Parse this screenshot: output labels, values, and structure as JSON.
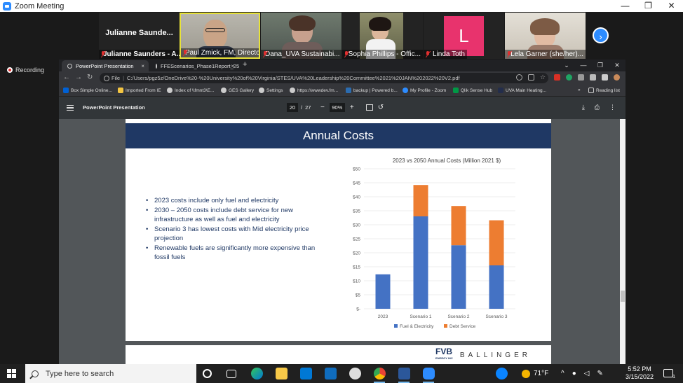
{
  "zoom": {
    "title": "Zoom Meeting",
    "window_controls": [
      "—",
      "❐",
      "✕"
    ],
    "recording_label": "Recording",
    "participants": [
      {
        "display": "Julianne  Saunde...",
        "label": "Julianne Saunders - A..."
      },
      {
        "label": "Paul Zmick, FM, Director ..."
      },
      {
        "label": "Dana_UVA Sustainabi..."
      },
      {
        "label": "Sophia Phillips - Offic..."
      },
      {
        "avatar_letter": "L",
        "avatar_color": "#e8336d",
        "label": "Linda Toth"
      },
      {
        "label": "Lela Garner (she/her)..."
      }
    ],
    "next_icon": "chevron-right-icon"
  },
  "browser": {
    "tabs": [
      {
        "label": "PowerPoint Presentation",
        "close": "×"
      },
      {
        "label": "FFEScenarios_Phase1Report_25",
        "close": "×"
      }
    ],
    "new_tab": "+",
    "window_controls": [
      "⌄",
      "—",
      "❐",
      "✕"
    ],
    "address": {
      "file_label": "File",
      "url": "C:/Users/pgz5z/OneDrive%20-%20University%20of%20Virginia/STES/UVA%20Leadership%20Committee%2021%20JAN%202022%20V2.pdf"
    },
    "bookmarks": [
      "Box Simple Online...",
      "Imported From IE",
      "Index of \\\\fmnt3\\E...",
      "GES Gallery",
      "Settings",
      "https://wwwdev.fm...",
      "backup | Powered b...",
      "My Profile - Zoom",
      "Qlik Sense Hub",
      "UVA Main Heating...",
      "»",
      "Reading list"
    ]
  },
  "pdf": {
    "title": "PowerPoint Presentation",
    "page_current": "20",
    "page_sep": "/",
    "page_total": "27",
    "zoom_minus": "−",
    "zoom": "90%",
    "zoom_plus": "+"
  },
  "slide": {
    "title": "Annual Costs",
    "bullets": [
      "2023 costs include only fuel and electricity",
      "2030 – 2050 costs include debt service for new infrastructure as well as fuel and electricity",
      "Scenario 3 has lowest costs with Mid electricity price projection",
      "Renewable fuels are significantly more expensive than fossil fuels"
    ],
    "next_slide_logo": "FVB",
    "next_slide_logo_sub": "ENERGY INC",
    "next_slide_brand": "BALLINGER"
  },
  "chart_data": {
    "type": "bar",
    "stacked": true,
    "title": "2023 vs 2050 Annual Costs (Million 2021 $)",
    "categories": [
      "2023",
      "Scenario 1",
      "Scenario 2",
      "Scenario 3"
    ],
    "series": [
      {
        "name": "Fuel & Electricity",
        "color": "#4472c4",
        "values": [
          12.3,
          33.0,
          22.7,
          15.5
        ]
      },
      {
        "name": "Debt Service",
        "color": "#ed7d31",
        "values": [
          0,
          11.2,
          14.0,
          16.1
        ]
      }
    ],
    "y_ticks": [
      "$-",
      "$5",
      "$10",
      "$15",
      "$20",
      "$25",
      "$30",
      "$35",
      "$40",
      "$45",
      "$50"
    ],
    "ylim": [
      0,
      50
    ],
    "grid": true,
    "legend_position": "bottom"
  },
  "taskbar": {
    "search_placeholder": "Type here to search",
    "weather": "71°F",
    "time": "5:52 PM",
    "date": "3/15/2022",
    "notification_count": "1"
  }
}
